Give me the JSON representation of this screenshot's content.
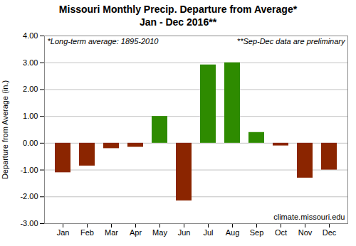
{
  "chart_data": {
    "type": "bar",
    "title": "Missouri Monthly Precip. Departure from Average*",
    "subtitle": "Jan - Dec 2016**",
    "ylabel": "Departure from Average (in.)",
    "categories": [
      "Jan",
      "Feb",
      "Mar",
      "Apr",
      "May",
      "Jun",
      "Jul",
      "Aug",
      "Sep",
      "Oct",
      "Nov",
      "Dec"
    ],
    "values": [
      -1.1,
      -0.85,
      -0.2,
      -0.15,
      1.0,
      -2.15,
      2.92,
      3.0,
      0.4,
      -0.1,
      -1.3,
      -1.0
    ],
    "colors": [
      "#8b2500",
      "#8b2500",
      "#8b2500",
      "#8b2500",
      "#2e8b00",
      "#8b2500",
      "#2e8b00",
      "#2e8b00",
      "#2e8b00",
      "#8b2500",
      "#8b2500",
      "#8b2500"
    ],
    "ylim": [
      -3.0,
      4.0
    ],
    "yticks": [
      {
        "value": -3.0,
        "label": "-3.00"
      },
      {
        "value": -2.0,
        "label": "-2.00"
      },
      {
        "value": -1.0,
        "label": "-1.00"
      },
      {
        "value": 0.0,
        "label": "0.00"
      },
      {
        "value": 1.0,
        "label": "1.00"
      },
      {
        "value": 2.0,
        "label": "2.00"
      },
      {
        "value": 3.0,
        "label": "3.00"
      },
      {
        "value": 4.0,
        "label": "4.00"
      }
    ],
    "grid": true,
    "annotations": [
      "*Long-term average: 1895-2010",
      "**Sep-Dec data are preliminary",
      "climate.missouri.edu"
    ]
  }
}
